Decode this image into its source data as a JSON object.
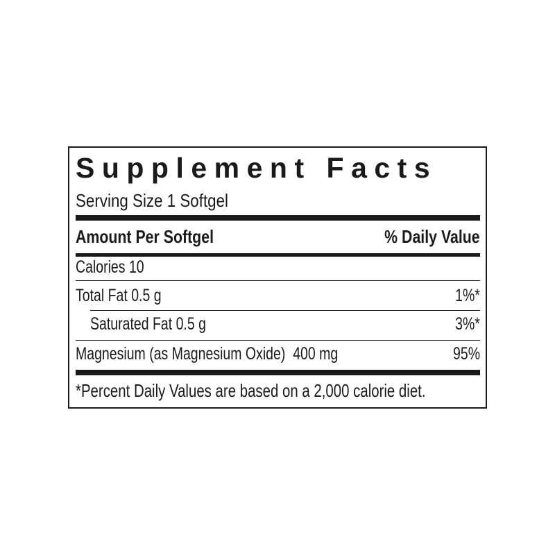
{
  "label": {
    "title": "Supplement Facts",
    "serving_size": "Serving Size 1 Softgel",
    "header_amount": "Amount Per Softgel",
    "header_daily_value": "% Daily Value",
    "rows": [
      {
        "name": "Calories 10",
        "dv": ""
      },
      {
        "name": "Total Fat 0.5 g",
        "dv": "1%*"
      },
      {
        "name": "Saturated Fat 0.5 g",
        "dv": "3%*"
      },
      {
        "name": "Magnesium (as Magnesium Oxide)  400 mg",
        "dv": "95%"
      }
    ],
    "footnote": "*Percent Daily Values are based on a 2,000 calorie diet."
  }
}
